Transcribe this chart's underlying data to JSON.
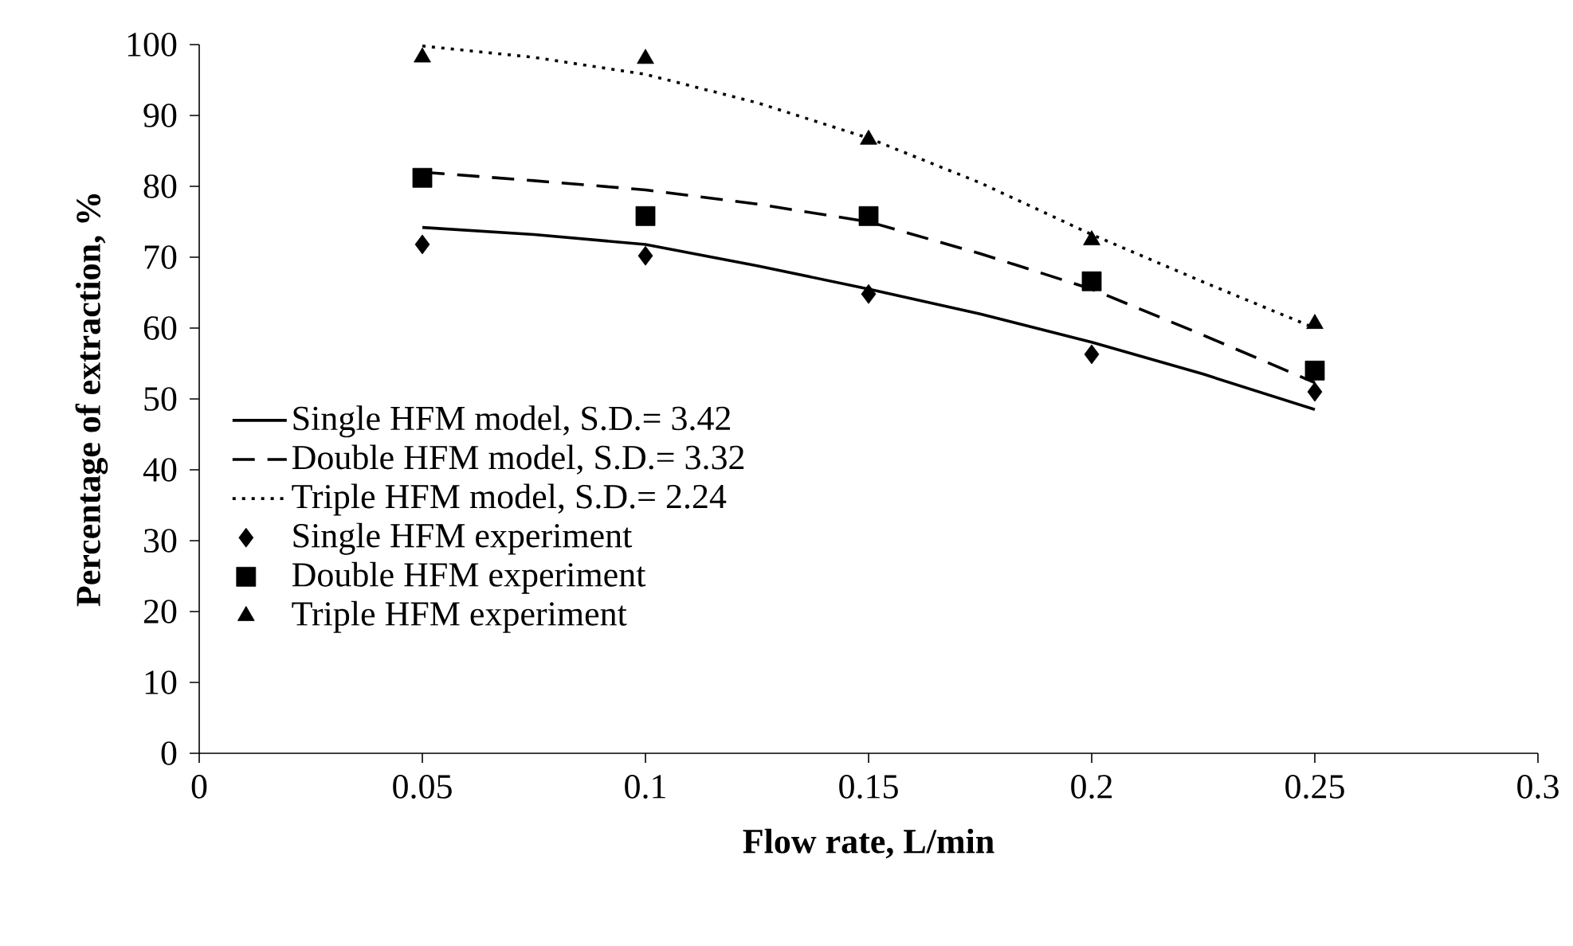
{
  "chart_data": {
    "type": "line",
    "xlabel": "Flow rate, L/min",
    "ylabel": "Percentage of extraction, %",
    "xlim": [
      0,
      0.3
    ],
    "xticks": [
      0,
      0.05,
      0.1,
      0.15,
      0.2,
      0.25,
      0.3
    ],
    "ylim": [
      0,
      100
    ],
    "yticks": [
      0,
      10,
      20,
      30,
      40,
      50,
      60,
      70,
      80,
      90,
      100
    ],
    "legend": "bottom left",
    "series": [
      {
        "name": "Single HFM model, S.D.= 3.42",
        "line_style": "solid",
        "marker": "none",
        "color": "#000000",
        "x": [
          0.05,
          0.075,
          0.1,
          0.125,
          0.15,
          0.175,
          0.2,
          0.225,
          0.25
        ],
        "values": [
          74.2,
          73.2,
          71.8,
          68.8,
          65.5,
          62,
          58,
          53.5,
          48.5
        ]
      },
      {
        "name": "Double HFM model, S.D.= 3.32",
        "line_style": "dashed",
        "marker": "none",
        "color": "#000000",
        "x": [
          0.05,
          0.075,
          0.1,
          0.125,
          0.15,
          0.175,
          0.2,
          0.225,
          0.25
        ],
        "values": [
          82.0,
          80.8,
          79.5,
          77.5,
          75.0,
          70.5,
          65.5,
          59,
          52.3
        ]
      },
      {
        "name": "Triple HFM model, S.D.= 2.24",
        "line_style": "dotted",
        "marker": "none",
        "color": "#000000",
        "x": [
          0.05,
          0.075,
          0.1,
          0.125,
          0.15,
          0.175,
          0.2,
          0.225,
          0.25
        ],
        "values": [
          99.8,
          98.2,
          95.8,
          91.8,
          86.8,
          80.5,
          73.2,
          66.5,
          60.0
        ]
      },
      {
        "name": "Single HFM experiment",
        "type": "scatter",
        "marker": "diamond",
        "color": "#000000",
        "x": [
          0.05,
          0.1,
          0.15,
          0.2,
          0.25
        ],
        "values": [
          71.8,
          70.2,
          64.8,
          56.3,
          51.0
        ]
      },
      {
        "name": "Double HFM experiment",
        "type": "scatter",
        "marker": "square",
        "color": "#000000",
        "x": [
          0.05,
          0.1,
          0.15,
          0.2,
          0.25
        ],
        "values": [
          81.2,
          75.8,
          75.8,
          66.6,
          54.0
        ]
      },
      {
        "name": "Triple HFM experiment",
        "type": "scatter",
        "marker": "triangle",
        "color": "#000000",
        "x": [
          0.05,
          0.1,
          0.15,
          0.2,
          0.25
        ],
        "values": [
          98.2,
          98.0,
          86.6,
          72.4,
          60.6
        ]
      }
    ]
  }
}
